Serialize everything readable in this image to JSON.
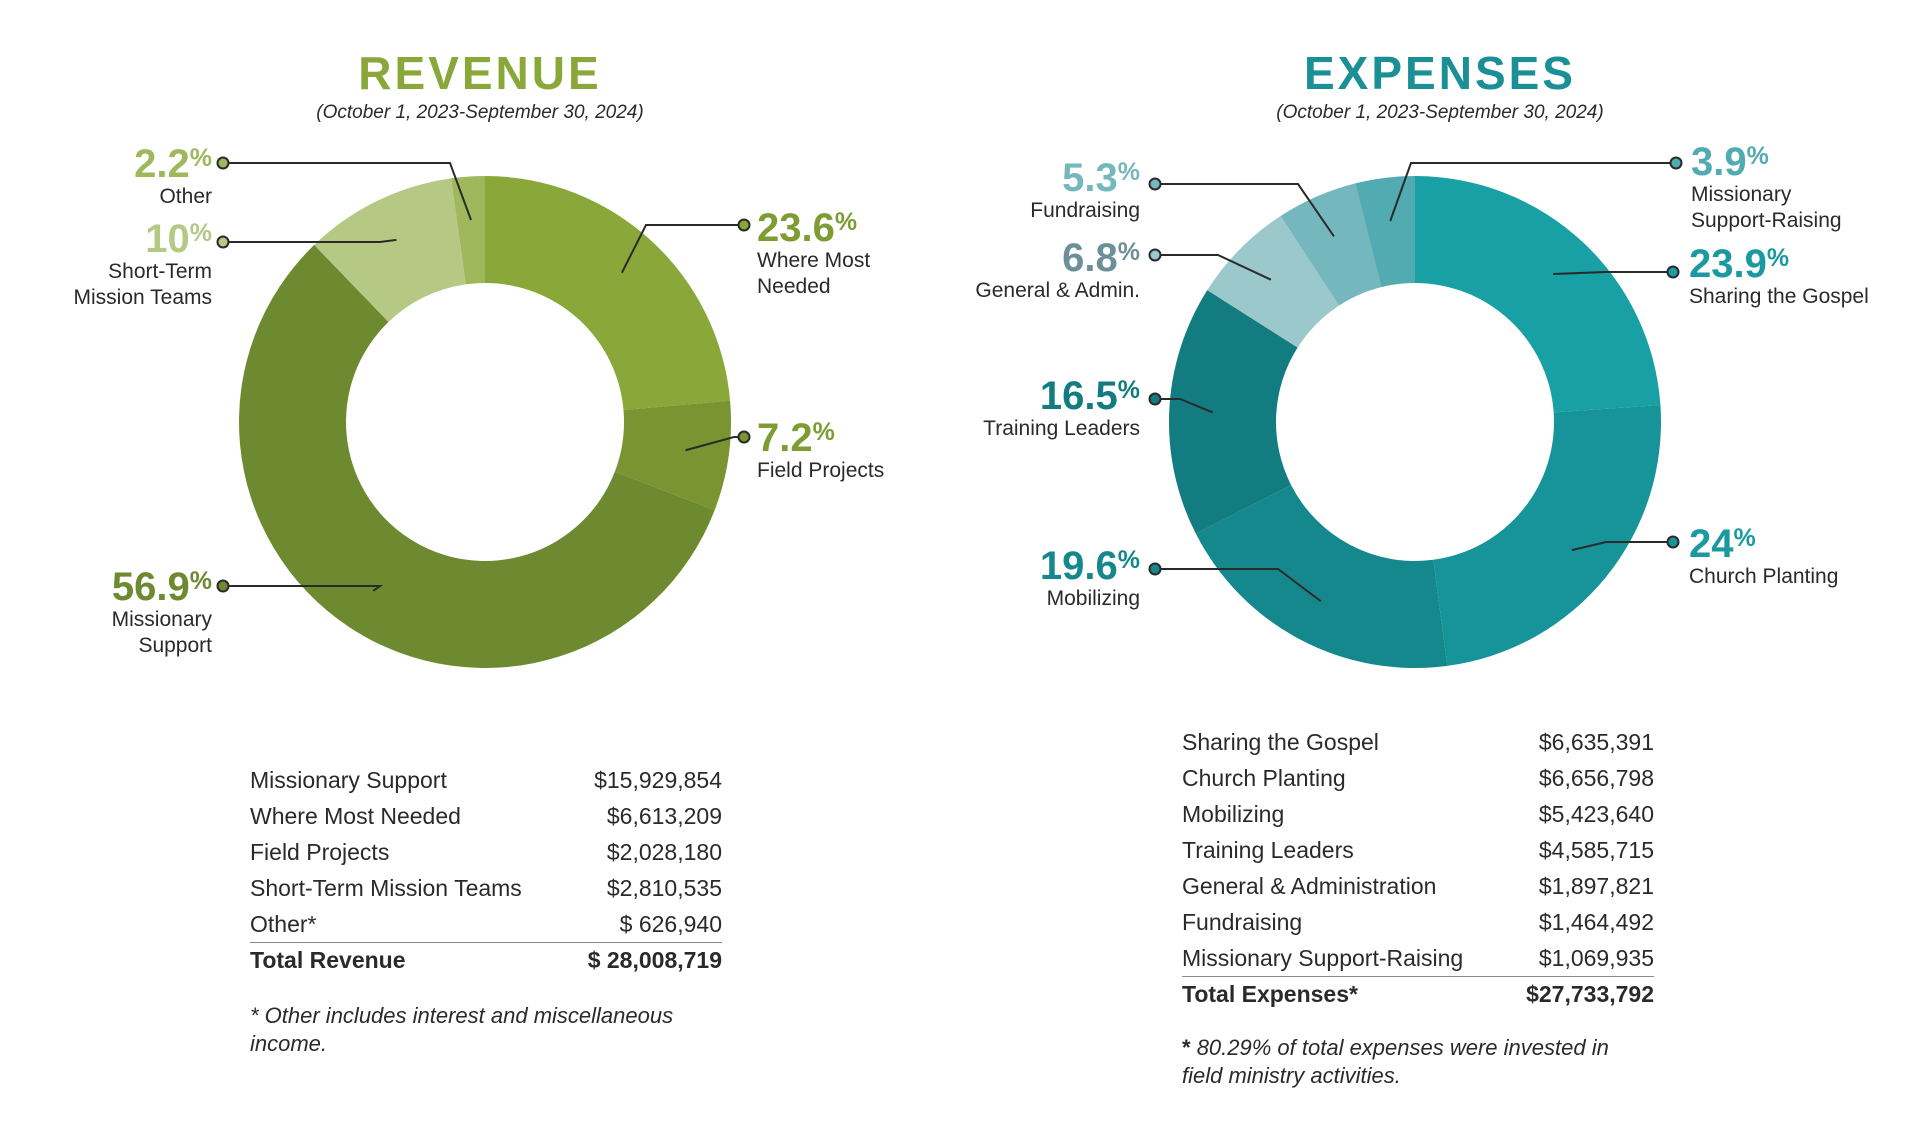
{
  "colors": {
    "revenue_title": "#8aa83a",
    "expenses_title": "#1a8f95",
    "leader": "#2a2a2a"
  },
  "revenue": {
    "title": "REVENUE",
    "subtitle": "(October 1, 2023-September 30, 2024)",
    "table": {
      "rows": [
        {
          "label": "Missionary Support",
          "amount": "$15,929,854"
        },
        {
          "label": "Where Most Needed",
          "amount": "$6,613,209"
        },
        {
          "label": "Field Projects",
          "amount": "$2,028,180"
        },
        {
          "label": "Short-Term Mission Teams",
          "amount": "$2,810,535"
        },
        {
          "label": "Other*",
          "amount": "$ 626,940"
        }
      ],
      "total_label": "Total Revenue",
      "total_amount": "$ 28,008,719"
    },
    "footnote": "* Other includes interest and miscellaneous income."
  },
  "expenses": {
    "title": "EXPENSES",
    "subtitle": "(October 1, 2023-September 30, 2024)",
    "table": {
      "rows": [
        {
          "label": "Sharing the Gospel",
          "amount": "$6,635,391"
        },
        {
          "label": "Church Planting",
          "amount": "$6,656,798"
        },
        {
          "label": "Mobilizing",
          "amount": "$5,423,640"
        },
        {
          "label": "Training Leaders",
          "amount": "$4,585,715"
        },
        {
          "label": "General & Administration",
          "amount": "$1,897,821"
        },
        {
          "label": "Fundraising",
          "amount": "$1,464,492"
        },
        {
          "label": "Missionary Support-Raising",
          "amount": "$1,069,935"
        }
      ],
      "total_label": "Total Expenses*",
      "total_amount": "$27,733,792"
    },
    "footnote_star": "*",
    "footnote": "80.29% of total expenses were invested in field ministry activities."
  },
  "chart_data": [
    {
      "type": "pie",
      "title": "REVENUE",
      "subtitle": "(October 1, 2023-September 30, 2024)",
      "start_angle_deg": 0,
      "direction": "clockwise",
      "slices": [
        {
          "label": "Where Most Needed",
          "value": 23.6,
          "pct_text": "23.6",
          "color": "#8aa83a"
        },
        {
          "label": "Field Projects",
          "value": 7.2,
          "pct_text": "7.2",
          "color": "#7a9432"
        },
        {
          "label": "Missionary Support",
          "value": 56.9,
          "pct_text": "56.9",
          "color": "#6d8a30"
        },
        {
          "label": "Short-Term Mission Teams",
          "value": 10,
          "pct_text": "10",
          "color": "#b5c985"
        },
        {
          "label": "Other",
          "value": 2.2,
          "pct_text": "2.2",
          "color": "#9fb85c"
        }
      ],
      "callouts": [
        {
          "slice": 0,
          "pct": "23.6",
          "label": "Where Most\nNeeded",
          "pct_color": "#7d9d33"
        },
        {
          "slice": 1,
          "pct": "7.2",
          "label": "Field Projects",
          "pct_color": "#7d9d33"
        },
        {
          "slice": 2,
          "pct": "56.9",
          "label": "Missionary\nSupport",
          "pct_color": "#6d8a30"
        },
        {
          "slice": 3,
          "pct": "10",
          "label": "Short-Term\nMission Teams",
          "pct_color": "#b5c985"
        },
        {
          "slice": 4,
          "pct": "2.2",
          "label": "Other",
          "pct_color": "#9fb85c"
        }
      ]
    },
    {
      "type": "pie",
      "title": "EXPENSES",
      "subtitle": "(October 1, 2023-September 30, 2024)",
      "start_angle_deg": 0,
      "direction": "clockwise",
      "slices": [
        {
          "label": "Sharing the Gospel",
          "value": 23.9,
          "pct_text": "23.9",
          "color": "#19a0a5"
        },
        {
          "label": "Church Planting",
          "value": 24,
          "pct_text": "24",
          "color": "#17949a"
        },
        {
          "label": "Mobilizing",
          "value": 19.6,
          "pct_text": "19.6",
          "color": "#15888d"
        },
        {
          "label": "Training Leaders",
          "value": 16.5,
          "pct_text": "16.5",
          "color": "#127c80"
        },
        {
          "label": "General & Admin.",
          "value": 6.8,
          "pct_text": "6.8",
          "color": "#9ac8cb"
        },
        {
          "label": "Fundraising",
          "value": 5.3,
          "pct_text": "5.3",
          "color": "#74b8bd"
        },
        {
          "label": "Missionary Support-Raising",
          "value": 3.9,
          "pct_text": "3.9",
          "color": "#52abb1"
        }
      ],
      "callouts": [
        {
          "slice": 0,
          "pct": "23.9",
          "label": "Sharing the Gospel",
          "pct_color": "#1a9aa0"
        },
        {
          "slice": 1,
          "pct": "24",
          "label": "Church Planting",
          "pct_color": "#1a9aa0"
        },
        {
          "slice": 2,
          "pct": "19.6",
          "label": "Mobilizing",
          "pct_color": "#15888d"
        },
        {
          "slice": 3,
          "pct": "16.5",
          "label": "Training Leaders",
          "pct_color": "#127c80"
        },
        {
          "slice": 4,
          "pct": "6.8",
          "label": "General & Admin.",
          "pct_color": "#6d8f98"
        },
        {
          "slice": 5,
          "pct": "5.3",
          "label": "Fundraising",
          "pct_color": "#74b8bd"
        },
        {
          "slice": 6,
          "pct": "3.9",
          "label": "Missionary\nSupport-Raising",
          "pct_color": "#52abb1"
        }
      ]
    }
  ]
}
